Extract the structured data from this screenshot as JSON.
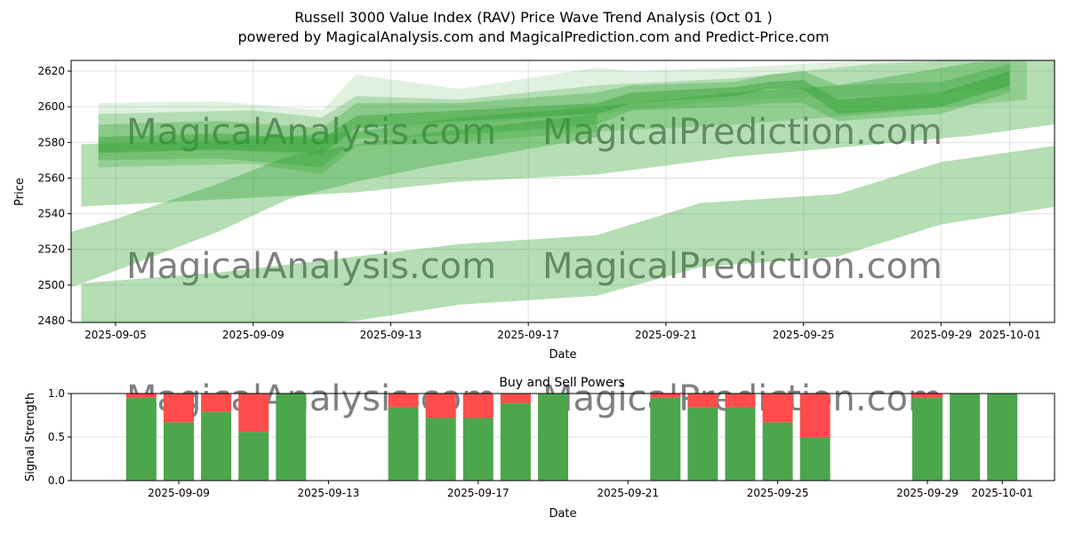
{
  "title": "Russell 3000 Value Index (RAV) Price Wave Trend Analysis (Oct 01 )",
  "subtitle": "powered by MagicalAnalysis.com and MagicalPrediction.com and Predict-Price.com",
  "watermarks": [
    "MagicalAnalysis.com",
    "MagicalPrediction.com"
  ],
  "colors": {
    "band": "#2ca02c",
    "buy": "#4ca64c",
    "sell": "#ff4c4c"
  },
  "chart_data": [
    {
      "type": "area",
      "xlabel": "Date",
      "ylabel": "Price",
      "ylim": [
        2479,
        2626
      ],
      "yticks": [
        2480,
        2500,
        2520,
        2540,
        2560,
        2580,
        2600,
        2620
      ],
      "xticks": [
        {
          "d": 0,
          "label": "2025-09-05"
        },
        {
          "d": 4,
          "label": "2025-09-09"
        },
        {
          "d": 8,
          "label": "2025-09-13"
        },
        {
          "d": 12,
          "label": "2025-09-17"
        },
        {
          "d": 16,
          "label": "2025-09-21"
        },
        {
          "d": 20,
          "label": "2025-09-25"
        },
        {
          "d": 24,
          "label": "2025-09-29"
        },
        {
          "d": 26,
          "label": "2025-10-01"
        }
      ],
      "x_note": "days since 2025-09-05",
      "bands": [
        {
          "opacity": 0.35,
          "x": [
            -1,
            3,
            7,
            10,
            14,
            18,
            21,
            25,
            28
          ],
          "upper": [
            2579,
            2581,
            2586,
            2594,
            2600,
            2608,
            2612,
            2625,
            2628
          ],
          "lower": [
            2544,
            2548,
            2552,
            2558,
            2562,
            2572,
            2577,
            2584,
            2592
          ]
        },
        {
          "opacity": 0.35,
          "x": [
            -1.8,
            0,
            3,
            5,
            7,
            9,
            14
          ],
          "upper": [
            2527,
            2537,
            2557,
            2572,
            2579,
            2585,
            2596
          ],
          "lower": [
            2495,
            2508,
            2530,
            2548,
            2558,
            2566,
            2583
          ]
        },
        {
          "opacity": 0.35,
          "x": [
            -1,
            3,
            7,
            10,
            14,
            17,
            21,
            24,
            28
          ],
          "upper": [
            2501,
            2507,
            2516,
            2523,
            2528,
            2546,
            2551,
            2569,
            2580
          ],
          "lower": [
            2470,
            2473,
            2480,
            2489,
            2494,
            2510,
            2516,
            2534,
            2546
          ]
        },
        {
          "opacity": 0.15,
          "x": [
            -0.5,
            3,
            6,
            7,
            10,
            14,
            15,
            18,
            22,
            26
          ],
          "upper": [
            2602,
            2603,
            2598,
            2618,
            2610,
            2622,
            2620,
            2622,
            2626,
            2626
          ],
          "lower": [
            2575,
            2576,
            2572,
            2588,
            2590,
            2596,
            2598,
            2604,
            2606,
            2610
          ]
        },
        {
          "opacity": 0.3,
          "x": [
            -0.5,
            3,
            6,
            7,
            10,
            14,
            15,
            18,
            19,
            20,
            21,
            24,
            26
          ],
          "upper": [
            2590,
            2592,
            2588,
            2602,
            2602,
            2608,
            2612,
            2614,
            2618,
            2620,
            2612,
            2614,
            2624
          ],
          "lower": [
            2570,
            2571,
            2566,
            2582,
            2584,
            2590,
            2598,
            2600,
            2602,
            2602,
            2592,
            2596,
            2608
          ]
        },
        {
          "opacity": 0.4,
          "x": [
            -0.5,
            3,
            6,
            7,
            10,
            14,
            15,
            18,
            19,
            20,
            21,
            24,
            26
          ],
          "upper": [
            2583,
            2585,
            2582,
            2595,
            2598,
            2602,
            2608,
            2611,
            2614,
            2615,
            2604,
            2608,
            2620
          ],
          "lower": [
            2574,
            2576,
            2574,
            2588,
            2592,
            2596,
            2602,
            2606,
            2610,
            2610,
            2596,
            2600,
            2612
          ]
        },
        {
          "opacity": 0.25,
          "x": [
            -0.5,
            4,
            6,
            7,
            10,
            14,
            18,
            22,
            26.5
          ],
          "upper": [
            2596,
            2598,
            2594,
            2606,
            2604,
            2612,
            2616,
            2624,
            2628
          ],
          "lower": [
            2566,
            2568,
            2562,
            2578,
            2580,
            2586,
            2590,
            2596,
            2604
          ]
        }
      ]
    },
    {
      "type": "bar",
      "title": "Buy and Sell Powers",
      "xlabel": "Date",
      "ylabel": "Signal Strength",
      "ylim": [
        0,
        1
      ],
      "yticks": [
        {
          "v": 0,
          "label": "0.0"
        },
        {
          "v": 0.5,
          "label": "0.5"
        },
        {
          "v": 1,
          "label": "1.0"
        }
      ],
      "xticks": [
        {
          "d": 4,
          "label": "2025-09-09"
        },
        {
          "d": 8,
          "label": "2025-09-13"
        },
        {
          "d": 12,
          "label": "2025-09-17"
        },
        {
          "d": 16,
          "label": "2025-09-21"
        },
        {
          "d": 20,
          "label": "2025-09-25"
        },
        {
          "d": 24,
          "label": "2025-09-29"
        },
        {
          "d": 26,
          "label": "2025-10-01"
        }
      ],
      "dates": [
        "2025-09-08",
        "2025-09-09",
        "2025-09-10",
        "2025-09-11",
        "2025-09-12",
        "2025-09-15",
        "2025-09-16",
        "2025-09-17",
        "2025-09-18",
        "2025-09-19",
        "2025-09-22",
        "2025-09-23",
        "2025-09-24",
        "2025-09-25",
        "2025-09-26",
        "2025-09-29",
        "2025-09-30",
        "2025-10-01"
      ],
      "d": [
        3,
        4,
        5,
        6,
        7,
        10,
        11,
        12,
        13,
        14,
        17,
        18,
        19,
        20,
        21,
        24,
        25,
        26
      ],
      "buy": [
        0.95,
        0.67,
        0.79,
        0.56,
        1.0,
        0.84,
        0.72,
        0.72,
        0.89,
        1.0,
        0.95,
        0.84,
        0.84,
        0.67,
        0.5,
        0.95,
        1.0,
        1.0
      ]
    }
  ]
}
